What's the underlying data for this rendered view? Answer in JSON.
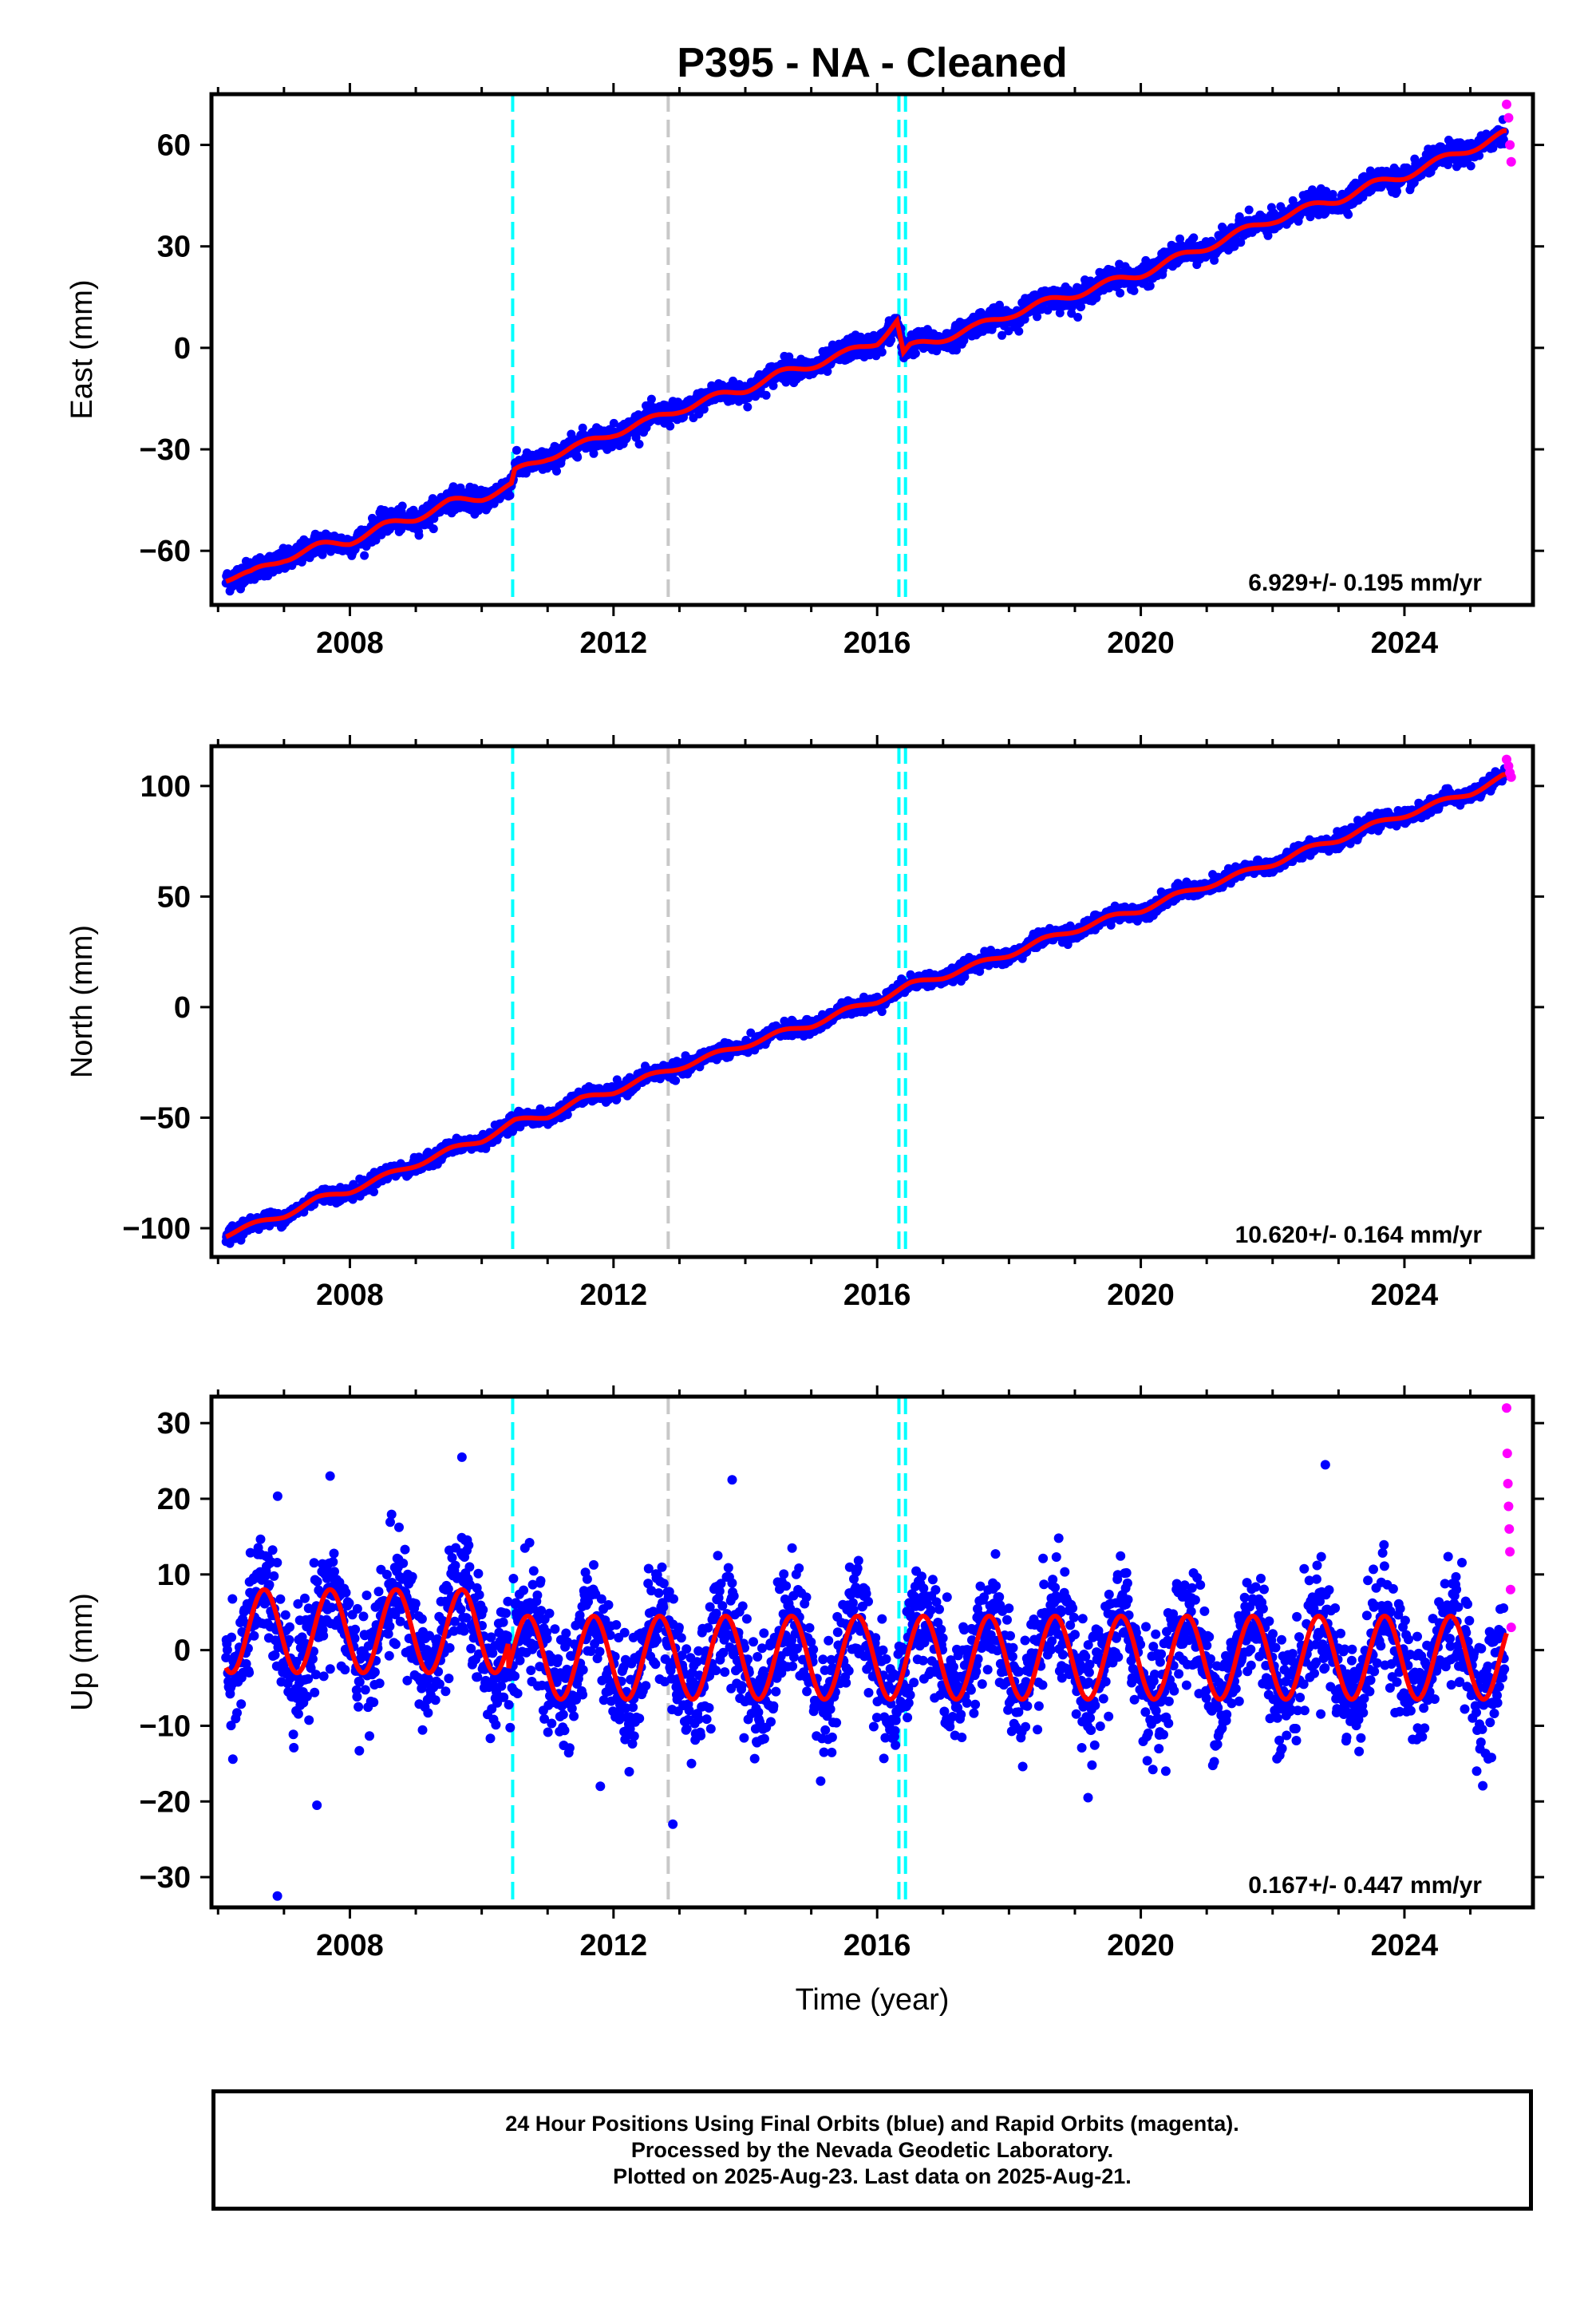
{
  "title": "P395  - NA - Cleaned",
  "xlabel": "Time (year)",
  "footer": {
    "line1": "24 Hour Positions Using Final Orbits (blue) and Rapid Orbits (magenta).",
    "line2": "Processed by the Nevada Geodetic Laboratory.",
    "line3": "Plotted on 2025-Aug-23. Last data on 2025-Aug-21."
  },
  "colors": {
    "final": "#0000ff",
    "rapid": "#ff00ff",
    "model": "#ff0000",
    "equipment_change": "#00ffff",
    "earthquake": "#c8c8c8"
  },
  "chart_data": [
    {
      "type": "scatter",
      "name_key": "east",
      "ylabel": "East (mm)",
      "xlim": [
        2005.9,
        2025.95
      ],
      "ylim": [
        -76,
        75
      ],
      "xticks": [
        2008,
        2012,
        2016,
        2020,
        2024
      ],
      "yticks": [
        -60,
        -30,
        0,
        30,
        60
      ],
      "rate_label": "6.929+/- 0.195 mm/yr",
      "series_final": {
        "x": [
          2006.1,
          2006.5,
          2007.0,
          2007.5,
          2008.0,
          2008.5,
          2009.0,
          2009.5,
          2010.0,
          2010.45,
          2010.5,
          2011.0,
          2011.5,
          2012.0,
          2012.5,
          2013.0,
          2013.5,
          2014.0,
          2014.5,
          2015.0,
          2015.5,
          2016.0,
          2016.3,
          2016.4,
          2016.5,
          2017.0,
          2017.5,
          2018.0,
          2018.5,
          2019.0,
          2019.5,
          2020.0,
          2020.5,
          2021.0,
          2021.5,
          2022.0,
          2022.5,
          2023.0,
          2023.5,
          2024.0,
          2024.5,
          2025.0,
          2025.5
        ],
        "y": [
          -68,
          -67,
          -62,
          -59,
          -57,
          -53,
          -50,
          -46,
          -44,
          -41,
          -37,
          -32,
          -29,
          -25,
          -22,
          -18,
          -15,
          -12,
          -8,
          -5,
          -2,
          2,
          8,
          -2,
          0,
          3,
          6,
          10,
          13,
          16,
          19,
          22,
          26,
          30,
          34,
          38,
          41,
          44,
          48,
          51,
          55,
          59,
          63
        ]
      },
      "series_rapid": {
        "x": [
          2025.55,
          2025.58,
          2025.6,
          2025.62
        ],
        "y": [
          72,
          68,
          60,
          55
        ]
      },
      "trend_rate_mm_per_yr": 6.929,
      "equipment_changes": [
        2010.47,
        2016.33,
        2016.43
      ],
      "earthquakes": [
        2012.83
      ]
    },
    {
      "type": "scatter",
      "name_key": "north",
      "ylabel": "North (mm)",
      "xlim": [
        2005.9,
        2025.95
      ],
      "ylim": [
        -113,
        118
      ],
      "xticks": [
        2008,
        2012,
        2016,
        2020,
        2024
      ],
      "yticks": [
        -100,
        -50,
        0,
        50,
        100
      ],
      "rate_label": "10.620+/- 0.164 mm/yr",
      "series_final": {
        "x": [
          2006.1,
          2006.5,
          2007.0,
          2007.5,
          2008.0,
          2008.5,
          2009.0,
          2009.5,
          2010.0,
          2010.5,
          2011.0,
          2011.5,
          2012.0,
          2012.5,
          2013.0,
          2013.5,
          2014.0,
          2014.5,
          2015.0,
          2015.5,
          2016.0,
          2016.5,
          2017.0,
          2017.5,
          2018.0,
          2018.5,
          2019.0,
          2019.5,
          2020.0,
          2020.5,
          2021.0,
          2021.5,
          2022.0,
          2022.5,
          2023.0,
          2023.5,
          2024.0,
          2024.5,
          2025.0,
          2025.5
        ],
        "y": [
          -103,
          -99,
          -94,
          -87,
          -83,
          -77,
          -71,
          -65,
          -60,
          -52,
          -49,
          -42,
          -38,
          -32,
          -27,
          -22,
          -17,
          -12,
          -8,
          -2,
          3,
          10,
          14,
          19,
          24,
          30,
          35,
          40,
          44,
          50,
          55,
          60,
          65,
          71,
          76,
          82,
          87,
          92,
          97,
          104
        ]
      },
      "series_rapid": {
        "x": [
          2025.55,
          2025.58,
          2025.6,
          2025.62
        ],
        "y": [
          112,
          109,
          106,
          104
        ]
      },
      "trend_rate_mm_per_yr": 10.62,
      "equipment_changes": [
        2010.47,
        2016.33,
        2016.43
      ],
      "earthquakes": [
        2012.83
      ]
    },
    {
      "type": "scatter",
      "name_key": "up",
      "ylabel": "Up (mm)",
      "xlim": [
        2005.9,
        2025.95
      ],
      "ylim": [
        -34,
        33.5
      ],
      "xticks": [
        2008,
        2012,
        2016,
        2020,
        2024
      ],
      "yticks": [
        -30,
        -20,
        -10,
        0,
        10,
        20,
        30
      ],
      "rate_label": "0.167+/- 0.447 mm/yr",
      "series_final": {
        "x": [
          2006.7,
          2007.7,
          2008.7,
          2009.7,
          2010.7,
          2011.7,
          2012.7,
          2013.7,
          2014.7,
          2015.7,
          2016.7,
          2017.7,
          2018.7,
          2019.7,
          2020.7,
          2021.7,
          2022.7,
          2023.7,
          2024.7,
          2006.9,
          2007.7,
          2009.7,
          2012.9,
          2013.8,
          2007.5,
          2011.8,
          2019.2,
          2022.8
        ],
        "y": [
          8,
          8,
          8,
          9,
          3,
          4,
          4,
          4,
          4,
          4,
          5,
          5,
          5,
          6,
          6,
          6,
          6,
          6,
          6,
          -32.5,
          23,
          25.5,
          -23,
          22.5,
          -20.5,
          -18,
          -19.5,
          24.5
        ]
      },
      "series_rapid": {
        "x": [
          2025.55,
          2025.56,
          2025.57,
          2025.58,
          2025.59,
          2025.6,
          2025.61,
          2025.62
        ],
        "y": [
          32,
          26,
          22,
          19,
          16,
          13,
          8,
          3
        ]
      },
      "annual_amplitude_mm": 5.5,
      "equipment_changes": [
        2010.47,
        2016.33,
        2016.43
      ],
      "earthquakes": [
        2012.83
      ]
    }
  ]
}
